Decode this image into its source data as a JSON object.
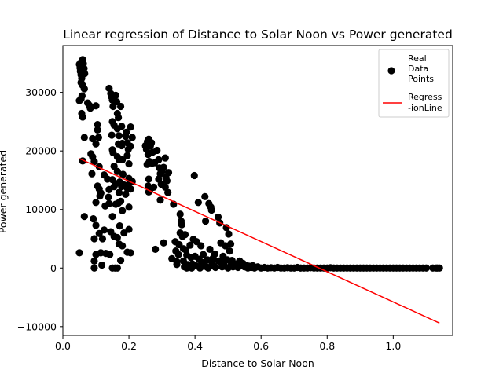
{
  "chart_data": {
    "type": "scatter",
    "title": "Linear regression of Distance to Solar Noon vs Power generated",
    "xlabel": "Distance to Solar Noon",
    "ylabel": "Power generated",
    "xlim": [
      0.0,
      1.18
    ],
    "ylim": [
      -11500,
      38000
    ],
    "x_ticks": [
      "0.0",
      "0.2",
      "0.4",
      "0.6",
      "0.8",
      "1.0"
    ],
    "x_tick_values": [
      0.0,
      0.2,
      0.4,
      0.6,
      0.8,
      1.0
    ],
    "y_ticks": [
      "−10000",
      "0",
      "10000",
      "20000",
      "30000"
    ],
    "y_tick_values": [
      -10000,
      0,
      10000,
      20000,
      30000
    ],
    "grid": false,
    "legend_position": "top-right",
    "legend": [
      {
        "label_lines": [
          "Real",
          "Data",
          "Points"
        ],
        "marker": "circle",
        "color": "#000000"
      },
      {
        "label_lines": [
          "Regress",
          "-ionLine"
        ],
        "marker": "line",
        "color": "#ff0000"
      }
    ],
    "series": [
      {
        "name": "Real Data Points",
        "kind": "scatter",
        "color": "#000000",
        "points": [
          [
            0.05,
            34800
          ],
          [
            0.052,
            34200
          ],
          [
            0.053,
            33600
          ],
          [
            0.055,
            33000
          ],
          [
            0.057,
            32400
          ],
          [
            0.055,
            31700
          ],
          [
            0.06,
            35600
          ],
          [
            0.062,
            34900
          ],
          [
            0.064,
            34100
          ],
          [
            0.066,
            33200
          ],
          [
            0.06,
            31200
          ],
          [
            0.065,
            30600
          ],
          [
            0.058,
            29400
          ],
          [
            0.055,
            28900
          ],
          [
            0.05,
            28600
          ],
          [
            0.057,
            26400
          ],
          [
            0.06,
            25800
          ],
          [
            0.065,
            22300
          ],
          [
            0.06,
            18300
          ],
          [
            0.065,
            8800
          ],
          [
            0.05,
            2600
          ],
          [
            0.075,
            28200
          ],
          [
            0.08,
            27800
          ],
          [
            0.083,
            27300
          ],
          [
            0.09,
            22100
          ],
          [
            0.085,
            19500
          ],
          [
            0.09,
            19000
          ],
          [
            0.095,
            18200
          ],
          [
            0.088,
            16100
          ],
          [
            0.092,
            8400
          ],
          [
            0.095,
            5000
          ],
          [
            0.095,
            1200
          ],
          [
            0.095,
            0
          ],
          [
            0.1,
            27700
          ],
          [
            0.1,
            21200
          ],
          [
            0.1,
            11200
          ],
          [
            0.1,
            7300
          ],
          [
            0.1,
            2300
          ],
          [
            0.105,
            24500
          ],
          [
            0.105,
            23600
          ],
          [
            0.108,
            22300
          ],
          [
            0.11,
            17300
          ],
          [
            0.105,
            14000
          ],
          [
            0.11,
            13500
          ],
          [
            0.115,
            12800
          ],
          [
            0.112,
            12300
          ],
          [
            0.11,
            5900
          ],
          [
            0.115,
            2600
          ],
          [
            0.118,
            500
          ],
          [
            0.12,
            5000
          ],
          [
            0.125,
            15900
          ],
          [
            0.128,
            10600
          ],
          [
            0.125,
            6500
          ],
          [
            0.13,
            2500
          ],
          [
            0.135,
            15200
          ],
          [
            0.14,
            11000
          ],
          [
            0.138,
            12100
          ],
          [
            0.14,
            13400
          ],
          [
            0.145,
            6200
          ],
          [
            0.142,
            2300
          ],
          [
            0.14,
            30700
          ],
          [
            0.145,
            29800
          ],
          [
            0.148,
            29200
          ],
          [
            0.15,
            28700
          ],
          [
            0.152,
            27600
          ],
          [
            0.15,
            25000
          ],
          [
            0.155,
            24400
          ],
          [
            0.148,
            22700
          ],
          [
            0.15,
            20200
          ],
          [
            0.152,
            19700
          ],
          [
            0.155,
            17400
          ],
          [
            0.15,
            15100
          ],
          [
            0.155,
            13900
          ],
          [
            0.16,
            14400
          ],
          [
            0.16,
            10900
          ],
          [
            0.15,
            8800
          ],
          [
            0.155,
            5400
          ],
          [
            0.15,
            0
          ],
          [
            0.158,
            0
          ],
          [
            0.16,
            29500
          ],
          [
            0.163,
            28400
          ],
          [
            0.165,
            26400
          ],
          [
            0.168,
            25700
          ],
          [
            0.165,
            23800
          ],
          [
            0.17,
            22600
          ],
          [
            0.168,
            21200
          ],
          [
            0.165,
            19000
          ],
          [
            0.17,
            18500
          ],
          [
            0.165,
            16500
          ],
          [
            0.172,
            14700
          ],
          [
            0.17,
            12900
          ],
          [
            0.175,
            11400
          ],
          [
            0.168,
            11100
          ],
          [
            0.172,
            7200
          ],
          [
            0.165,
            5200
          ],
          [
            0.17,
            4100
          ],
          [
            0.165,
            0
          ],
          [
            0.175,
            27600
          ],
          [
            0.178,
            24200
          ],
          [
            0.18,
            21300
          ],
          [
            0.178,
            20900
          ],
          [
            0.18,
            18500
          ],
          [
            0.182,
            16000
          ],
          [
            0.185,
            14200
          ],
          [
            0.178,
            13900
          ],
          [
            0.18,
            9800
          ],
          [
            0.185,
            6000
          ],
          [
            0.18,
            3800
          ],
          [
            0.175,
            1300
          ],
          [
            0.19,
            22500
          ],
          [
            0.192,
            23200
          ],
          [
            0.195,
            21400
          ],
          [
            0.198,
            20300
          ],
          [
            0.195,
            19200
          ],
          [
            0.2,
            17800
          ],
          [
            0.2,
            15300
          ],
          [
            0.198,
            14200
          ],
          [
            0.195,
            13600
          ],
          [
            0.19,
            12600
          ],
          [
            0.2,
            10400
          ],
          [
            0.205,
            13500
          ],
          [
            0.2,
            6600
          ],
          [
            0.195,
            2700
          ],
          [
            0.205,
            2600
          ],
          [
            0.205,
            24100
          ],
          [
            0.21,
            22300
          ],
          [
            0.205,
            20800
          ],
          [
            0.21,
            14800
          ],
          [
            0.25,
            20900
          ],
          [
            0.253,
            20300
          ],
          [
            0.256,
            21600
          ],
          [
            0.258,
            19400
          ],
          [
            0.26,
            22000
          ],
          [
            0.262,
            18200
          ],
          [
            0.255,
            17700
          ],
          [
            0.26,
            15200
          ],
          [
            0.265,
            13500
          ],
          [
            0.26,
            13000
          ],
          [
            0.258,
            14000
          ],
          [
            0.265,
            20900
          ],
          [
            0.27,
            17900
          ],
          [
            0.272,
            19800
          ],
          [
            0.268,
            21400
          ],
          [
            0.275,
            13800
          ],
          [
            0.278,
            18000
          ],
          [
            0.28,
            3200
          ],
          [
            0.285,
            20100
          ],
          [
            0.29,
            18500
          ],
          [
            0.292,
            17100
          ],
          [
            0.295,
            16100
          ],
          [
            0.29,
            15200
          ],
          [
            0.295,
            11600
          ],
          [
            0.298,
            14300
          ],
          [
            0.3,
            16500
          ],
          [
            0.305,
            17200
          ],
          [
            0.31,
            18800
          ],
          [
            0.305,
            4300
          ],
          [
            0.31,
            13800
          ],
          [
            0.312,
            15500
          ],
          [
            0.315,
            14900
          ],
          [
            0.318,
            12900
          ],
          [
            0.32,
            16300
          ],
          [
            0.33,
            1600
          ],
          [
            0.335,
            10900
          ],
          [
            0.34,
            4500
          ],
          [
            0.342,
            2900
          ],
          [
            0.345,
            1100
          ],
          [
            0.345,
            600
          ],
          [
            0.35,
            2300
          ],
          [
            0.352,
            4000
          ],
          [
            0.355,
            6000
          ],
          [
            0.355,
            9200
          ],
          [
            0.358,
            8000
          ],
          [
            0.36,
            7400
          ],
          [
            0.362,
            5400
          ],
          [
            0.365,
            3300
          ],
          [
            0.365,
            1200
          ],
          [
            0.368,
            200
          ],
          [
            0.37,
            5700
          ],
          [
            0.372,
            3100
          ],
          [
            0.375,
            2200
          ],
          [
            0.375,
            0
          ],
          [
            0.378,
            600
          ],
          [
            0.38,
            200
          ],
          [
            0.385,
            3900
          ],
          [
            0.388,
            1800
          ],
          [
            0.39,
            0
          ],
          [
            0.392,
            700
          ],
          [
            0.395,
            4900
          ],
          [
            0.398,
            15800
          ],
          [
            0.4,
            2000
          ],
          [
            0.402,
            400
          ],
          [
            0.405,
            4500
          ],
          [
            0.41,
            11200
          ],
          [
            0.412,
            1500
          ],
          [
            0.415,
            0
          ],
          [
            0.418,
            3800
          ],
          [
            0.42,
            1000
          ],
          [
            0.422,
            300
          ],
          [
            0.425,
            2300
          ],
          [
            0.428,
            700
          ],
          [
            0.43,
            12200
          ],
          [
            0.432,
            8000
          ],
          [
            0.435,
            200
          ],
          [
            0.438,
            1400
          ],
          [
            0.44,
            0
          ],
          [
            0.442,
            11000
          ],
          [
            0.445,
            3200
          ],
          [
            0.448,
            10400
          ],
          [
            0.45,
            9900
          ],
          [
            0.452,
            800
          ],
          [
            0.455,
            1700
          ],
          [
            0.458,
            300
          ],
          [
            0.46,
            2400
          ],
          [
            0.462,
            100
          ],
          [
            0.47,
            8700
          ],
          [
            0.472,
            1200
          ],
          [
            0.475,
            7700
          ],
          [
            0.478,
            4300
          ],
          [
            0.48,
            800
          ],
          [
            0.482,
            200
          ],
          [
            0.485,
            2000
          ],
          [
            0.488,
            1000
          ],
          [
            0.49,
            300
          ],
          [
            0.492,
            3800
          ],
          [
            0.495,
            6900
          ],
          [
            0.498,
            1400
          ],
          [
            0.5,
            0
          ],
          [
            0.502,
            5800
          ],
          [
            0.505,
            2900
          ],
          [
            0.508,
            4100
          ],
          [
            0.51,
            600
          ],
          [
            0.512,
            1300
          ],
          [
            0.515,
            200
          ],
          [
            0.52,
            300
          ],
          [
            0.525,
            700
          ],
          [
            0.53,
            100
          ],
          [
            0.535,
            1200
          ],
          [
            0.54,
            400
          ],
          [
            0.545,
            800
          ],
          [
            0.55,
            200
          ],
          [
            0.555,
            500
          ],
          [
            0.56,
            0
          ],
          [
            0.565,
            300
          ],
          [
            0.57,
            100
          ],
          [
            0.575,
            400
          ],
          [
            0.58,
            0
          ],
          [
            0.59,
            200
          ],
          [
            0.6,
            0
          ],
          [
            0.61,
            100
          ],
          [
            0.62,
            0
          ],
          [
            0.63,
            50
          ],
          [
            0.64,
            0
          ],
          [
            0.65,
            100
          ],
          [
            0.66,
            0
          ],
          [
            0.67,
            0
          ],
          [
            0.68,
            50
          ],
          [
            0.69,
            0
          ],
          [
            0.7,
            0
          ],
          [
            0.71,
            100
          ],
          [
            0.72,
            0
          ],
          [
            0.73,
            0
          ],
          [
            0.74,
            0
          ],
          [
            0.75,
            50
          ],
          [
            0.76,
            0
          ],
          [
            0.77,
            0
          ],
          [
            0.78,
            0
          ],
          [
            0.79,
            0
          ],
          [
            0.8,
            0
          ],
          [
            0.81,
            50
          ],
          [
            0.82,
            0
          ],
          [
            0.83,
            0
          ],
          [
            0.84,
            0
          ],
          [
            0.85,
            0
          ],
          [
            0.86,
            0
          ],
          [
            0.87,
            0
          ],
          [
            0.88,
            0
          ],
          [
            0.89,
            0
          ],
          [
            0.9,
            0
          ],
          [
            0.91,
            0
          ],
          [
            0.92,
            0
          ],
          [
            0.93,
            0
          ],
          [
            0.94,
            0
          ],
          [
            0.95,
            0
          ],
          [
            0.96,
            0
          ],
          [
            0.97,
            0
          ],
          [
            0.98,
            0
          ],
          [
            0.99,
            0
          ],
          [
            1.0,
            0
          ],
          [
            1.01,
            0
          ],
          [
            1.02,
            0
          ],
          [
            1.03,
            0
          ],
          [
            1.04,
            0
          ],
          [
            1.05,
            0
          ],
          [
            1.06,
            0
          ],
          [
            1.07,
            0
          ],
          [
            1.08,
            0
          ],
          [
            1.09,
            0
          ],
          [
            1.1,
            0
          ],
          [
            1.12,
            0
          ],
          [
            1.13,
            0
          ],
          [
            1.134,
            0
          ],
          [
            1.14,
            0
          ]
        ]
      },
      {
        "name": "Regress-ionLine",
        "kind": "line",
        "color": "#ff0000",
        "points": [
          [
            0.05,
            18700
          ],
          [
            1.14,
            -9400
          ]
        ]
      }
    ]
  }
}
